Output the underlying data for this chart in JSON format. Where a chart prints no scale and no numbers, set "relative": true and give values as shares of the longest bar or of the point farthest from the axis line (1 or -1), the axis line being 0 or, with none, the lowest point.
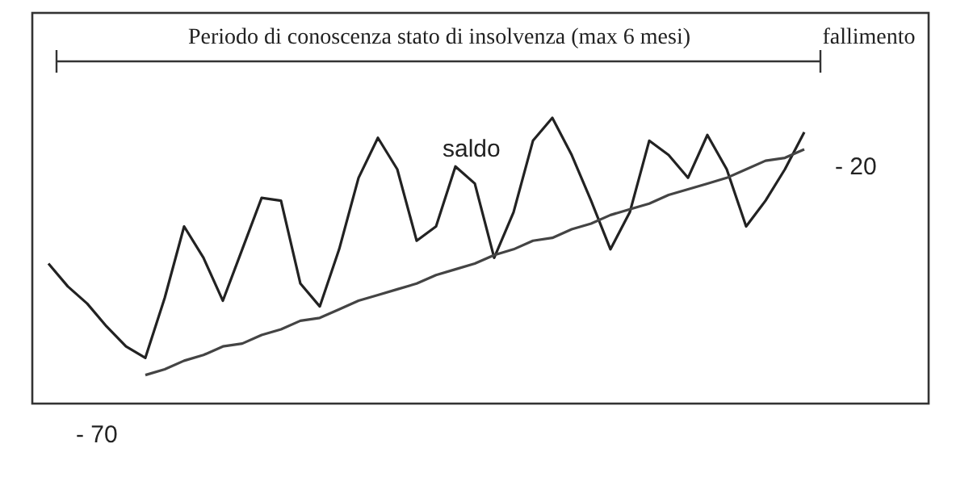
{
  "chart_data": {
    "type": "line",
    "relative": true,
    "grid": false,
    "marker": "none",
    "line_style": "solid",
    "annotations": [
      "Periodo di conoscenza stato di insolvenza (max 6 mesi)",
      "fallimento",
      "- 20",
      "- 70"
    ],
    "categories": [
      null,
      null,
      null,
      null,
      null,
      null,
      null,
      null,
      null,
      null,
      null,
      null,
      null,
      null,
      null,
      null,
      null,
      null,
      null,
      null,
      null,
      null,
      null,
      null,
      null,
      null,
      null,
      null,
      null,
      null,
      null,
      null,
      null,
      null,
      null,
      null,
      null,
      null,
      null,
      null
    ],
    "series": [
      {
        "name": "saldo",
        "color": "#222222",
        "values": [
          0.49,
          0.41,
          0.35,
          0.27,
          0.2,
          0.16,
          0.37,
          0.62,
          0.51,
          0.36,
          0.54,
          0.72,
          0.71,
          0.42,
          0.34,
          0.54,
          0.79,
          0.93,
          0.82,
          0.57,
          0.62,
          0.83,
          0.77,
          0.51,
          0.67,
          0.92,
          1,
          0.87,
          0.71,
          0.54,
          0.67,
          0.92,
          0.87,
          0.79,
          0.94,
          0.82,
          0.62,
          0.71,
          0.82,
          0.95
        ]
      },
      {
        "color": "#444444",
        "values": [
          null,
          null,
          null,
          null,
          null,
          0.1,
          0.12,
          0.15,
          0.17,
          0.2,
          0.21,
          0.24,
          0.26,
          0.29,
          0.3,
          0.33,
          0.36,
          0.38,
          0.4,
          0.42,
          0.45,
          0.47,
          0.49,
          0.52,
          0.54,
          0.57,
          0.58,
          0.61,
          0.63,
          0.66,
          0.68,
          0.7,
          0.73,
          0.75,
          0.77,
          0.79,
          0.82,
          0.85,
          0.86,
          0.89
        ]
      }
    ]
  }
}
